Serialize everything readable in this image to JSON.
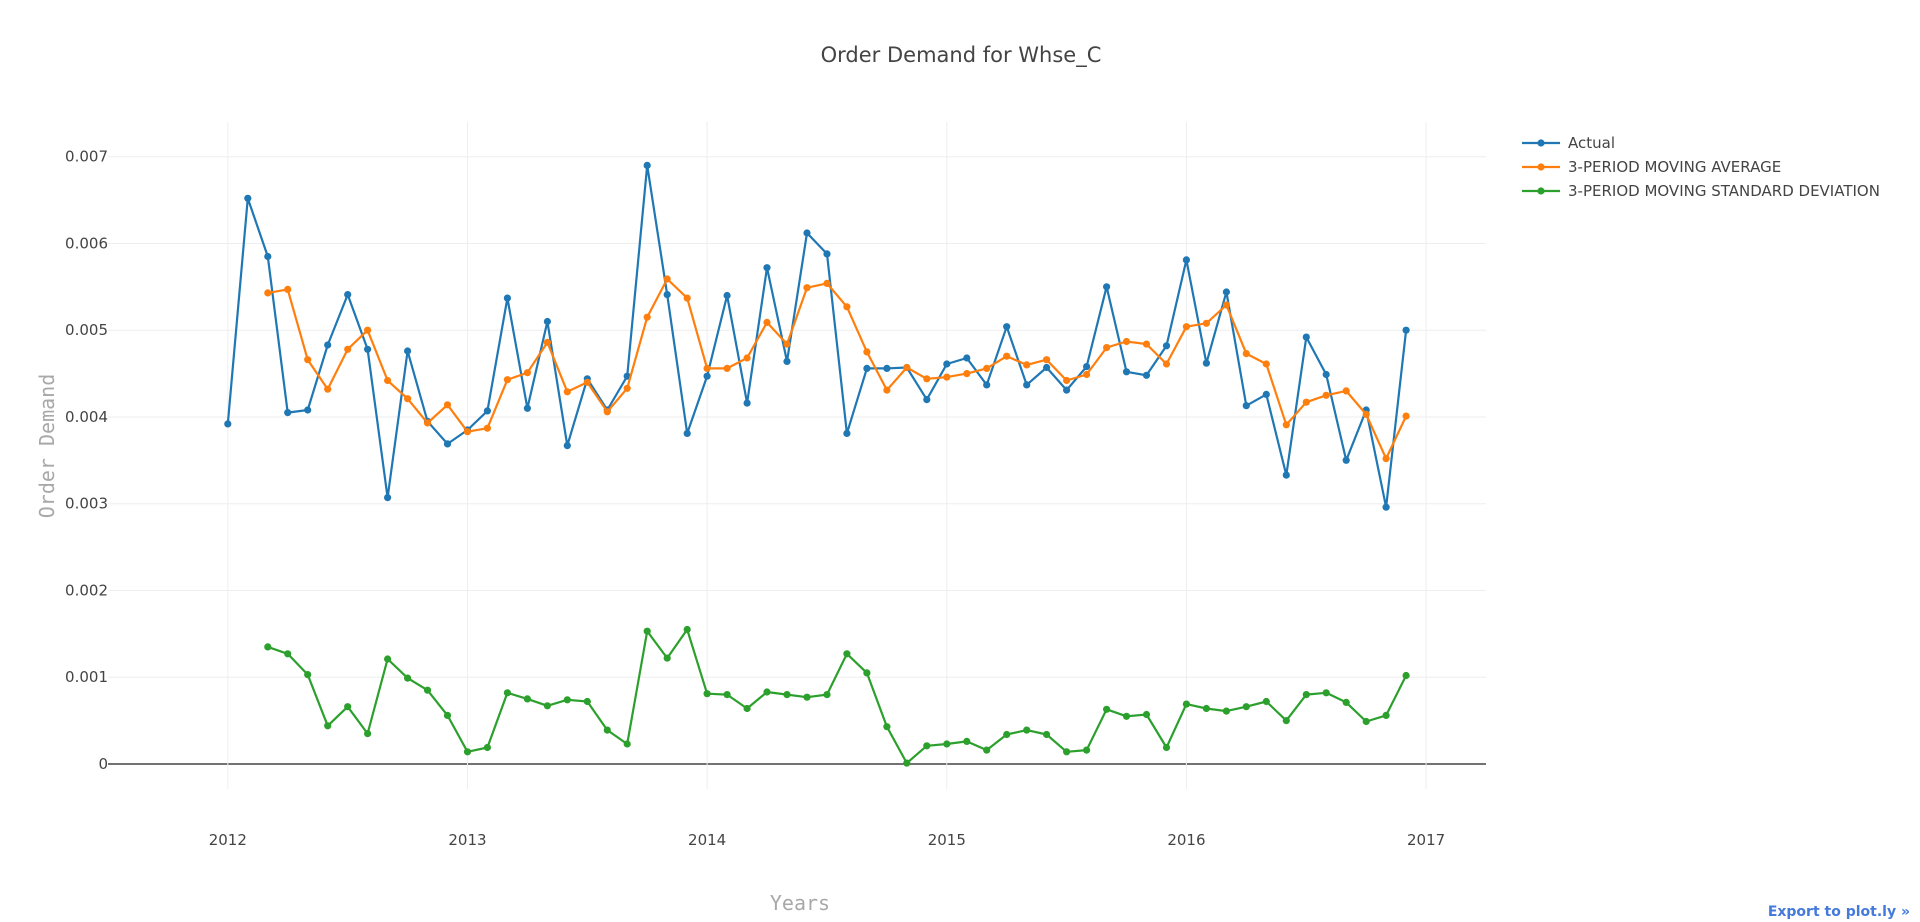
{
  "chart_data": {
    "type": "line",
    "title": "Order Demand for Whse_C",
    "xlabel": "Years",
    "ylabel": "Order Demand",
    "x_start": "2012-01",
    "x_ticks": [
      "2012",
      "2013",
      "2014",
      "2015",
      "2016",
      "2017"
    ],
    "y_ticks": [
      "0",
      "0.001",
      "0.002",
      "0.003",
      "0.004",
      "0.005",
      "0.006",
      "0.007"
    ],
    "xlim": [
      "2011-07",
      "2017-04"
    ],
    "ylim": [
      -0.0003,
      0.0074
    ],
    "grid": true,
    "legend_position": "top-right",
    "series": [
      {
        "name": "Actual",
        "color": "#1f77b4",
        "values": [
          0.00392,
          0.00652,
          0.00585,
          0.00405,
          0.00408,
          0.00483,
          0.00541,
          0.00478,
          0.00307,
          0.00476,
          0.00395,
          0.00369,
          0.00385,
          0.00407,
          0.00537,
          0.0041,
          0.0051,
          0.00367,
          0.00444,
          0.00408,
          0.00447,
          0.0069,
          0.00541,
          0.00381,
          0.00447,
          0.0054,
          0.00416,
          0.00572,
          0.00464,
          0.00612,
          0.00588,
          0.00381,
          0.00456,
          0.00456,
          0.00457,
          0.0042,
          0.00461,
          0.00468,
          0.00437,
          0.00504,
          0.00437,
          0.00457,
          0.00431,
          0.00458,
          0.0055,
          0.00452,
          0.00448,
          0.00482,
          0.00581,
          0.00462,
          0.00544,
          0.00413,
          0.00426,
          0.00333,
          0.00492,
          0.00449,
          0.0035,
          0.00408,
          0.00296,
          0.005
        ]
      },
      {
        "name": "3-PERIOD MOVING AVERAGE",
        "color": "#ff7f0e",
        "values": [
          null,
          null,
          0.00543,
          0.00547,
          0.00466,
          0.00432,
          0.00478,
          0.005,
          0.00442,
          0.00421,
          0.00393,
          0.00414,
          0.00383,
          0.00387,
          0.00443,
          0.00451,
          0.00486,
          0.00429,
          0.0044,
          0.00406,
          0.00433,
          0.00515,
          0.00559,
          0.00537,
          0.00456,
          0.00456,
          0.00468,
          0.00509,
          0.00484,
          0.00549,
          0.00554,
          0.00527,
          0.00475,
          0.00431,
          0.00457,
          0.00444,
          0.00446,
          0.0045,
          0.00456,
          0.0047,
          0.0046,
          0.00466,
          0.00442,
          0.00449,
          0.0048,
          0.00487,
          0.00484,
          0.00461,
          0.00504,
          0.00508,
          0.00529,
          0.00473,
          0.00461,
          0.00391,
          0.00417,
          0.00425,
          0.0043,
          0.00403,
          0.00352,
          0.00401
        ]
      },
      {
        "name": "3-PERIOD MOVING STANDARD DEVIATION",
        "color": "#2ca02c",
        "values": [
          null,
          null,
          0.00135,
          0.00127,
          0.00103,
          0.00044,
          0.00066,
          0.00035,
          0.00121,
          0.00099,
          0.00085,
          0.00056,
          0.00014,
          0.00019,
          0.00082,
          0.00075,
          0.00067,
          0.00074,
          0.00072,
          0.00039,
          0.00023,
          0.00153,
          0.00122,
          0.00155,
          0.00081,
          0.0008,
          0.00064,
          0.00083,
          0.0008,
          0.00077,
          0.0008,
          0.00127,
          0.00105,
          0.00043,
          1e-05,
          0.00021,
          0.00023,
          0.00026,
          0.00016,
          0.00034,
          0.00039,
          0.00034,
          0.00014,
          0.00016,
          0.00063,
          0.00055,
          0.00057,
          0.00019,
          0.00069,
          0.00064,
          0.00061,
          0.00066,
          0.00072,
          0.0005,
          0.0008,
          0.00082,
          0.00071,
          0.00049,
          0.00056,
          0.00102
        ]
      }
    ]
  },
  "export_label": "Export to plot.ly »"
}
